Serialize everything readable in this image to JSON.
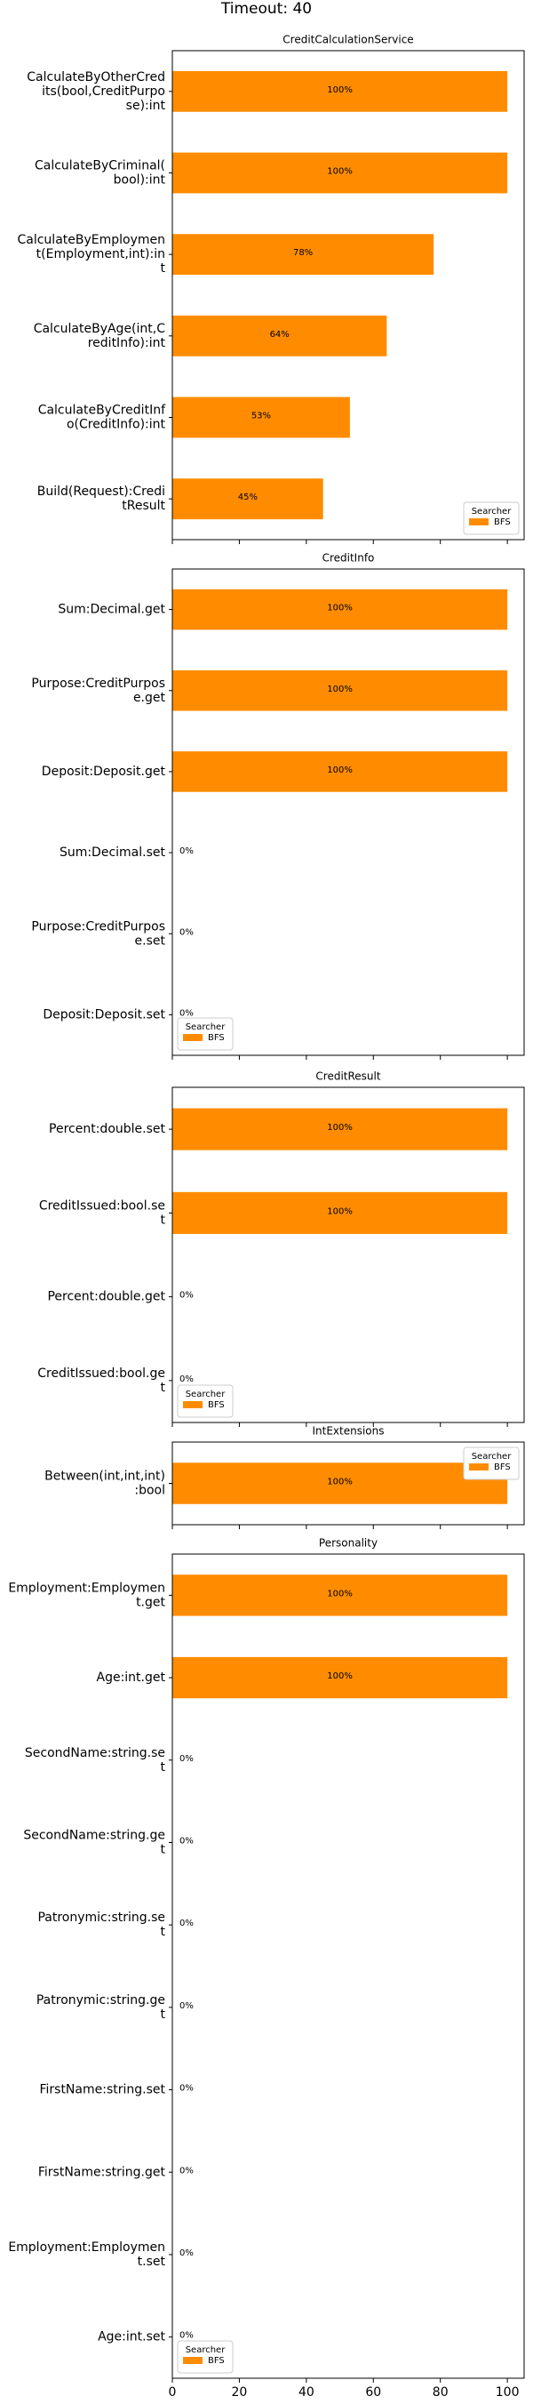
{
  "title": "Timeout: 40",
  "chart_data": [
    {
      "type": "barh",
      "title": "CreditCalculationService",
      "categories": [
        "CalculateByOtherCred\nits(bool,CreditPurpo\nse):int",
        "CalculateByCriminal(\nbool):int",
        "CalculateByEmploymen\nt(Employment,int):in\nt",
        "CalculateByAge(int,C\nreditInfo):int",
        "CalculateByCreditInf\no(CreditInfo):int",
        "Build(Request):Credi\ntResult"
      ],
      "series": [
        {
          "name": "BFS",
          "color": "#ff8c00",
          "values": [
            100,
            100,
            78,
            64,
            53,
            45
          ],
          "value_labels": [
            "100%",
            "100%",
            "78%",
            "64%",
            "53%",
            "45%"
          ]
        }
      ],
      "xlim": [
        0,
        105
      ],
      "legend_title": "Searcher",
      "legend_loc": "lower right"
    },
    {
      "type": "barh",
      "title": "CreditInfo",
      "categories": [
        "Sum:Decimal.get",
        "Purpose:CreditPurpos\ne.get",
        "Deposit:Deposit.get",
        "Sum:Decimal.set",
        "Purpose:CreditPurpos\ne.set",
        "Deposit:Deposit.set"
      ],
      "series": [
        {
          "name": "BFS",
          "color": "#ff8c00",
          "values": [
            100,
            100,
            100,
            0,
            0,
            0
          ],
          "value_labels": [
            "100%",
            "100%",
            "100%",
            "0%",
            "0%",
            "0%"
          ]
        }
      ],
      "xlim": [
        0,
        105
      ],
      "legend_title": "Searcher",
      "legend_loc": "lower left"
    },
    {
      "type": "barh",
      "title": "CreditResult",
      "categories": [
        "Percent:double.set",
        "CreditIssued:bool.se\nt",
        "Percent:double.get",
        "CreditIssued:bool.ge\nt"
      ],
      "series": [
        {
          "name": "BFS",
          "color": "#ff8c00",
          "values": [
            100,
            100,
            0,
            0
          ],
          "value_labels": [
            "100%",
            "100%",
            "0%",
            "0%"
          ]
        }
      ],
      "xlim": [
        0,
        105
      ],
      "legend_title": "Searcher",
      "legend_loc": "lower left"
    },
    {
      "type": "barh",
      "title": "IntExtensions",
      "categories": [
        "Between(int,int,int)\n:bool"
      ],
      "series": [
        {
          "name": "BFS",
          "color": "#ff8c00",
          "values": [
            100
          ],
          "value_labels": [
            "100%"
          ]
        }
      ],
      "xlim": [
        0,
        105
      ],
      "legend_title": "Searcher",
      "legend_loc": "upper right"
    },
    {
      "type": "barh",
      "title": "Personality",
      "categories": [
        "Employment:Employmen\nt.get",
        "Age:int.get",
        "SecondName:string.se\nt",
        "SecondName:string.ge\nt",
        "Patronymic:string.se\nt",
        "Patronymic:string.ge\nt",
        "FirstName:string.set",
        "FirstName:string.get",
        "Employment:Employmen\nt.set",
        "Age:int.set"
      ],
      "series": [
        {
          "name": "BFS",
          "color": "#ff8c00",
          "values": [
            100,
            100,
            0,
            0,
            0,
            0,
            0,
            0,
            0,
            0
          ],
          "value_labels": [
            "100%",
            "100%",
            "0%",
            "0%",
            "0%",
            "0%",
            "0%",
            "0%",
            "0%",
            "0%"
          ]
        }
      ],
      "xlim": [
        0,
        105
      ],
      "xticks": [
        0,
        20,
        40,
        60,
        80,
        100
      ],
      "legend_title": "Searcher",
      "legend_loc": "lower left"
    }
  ]
}
